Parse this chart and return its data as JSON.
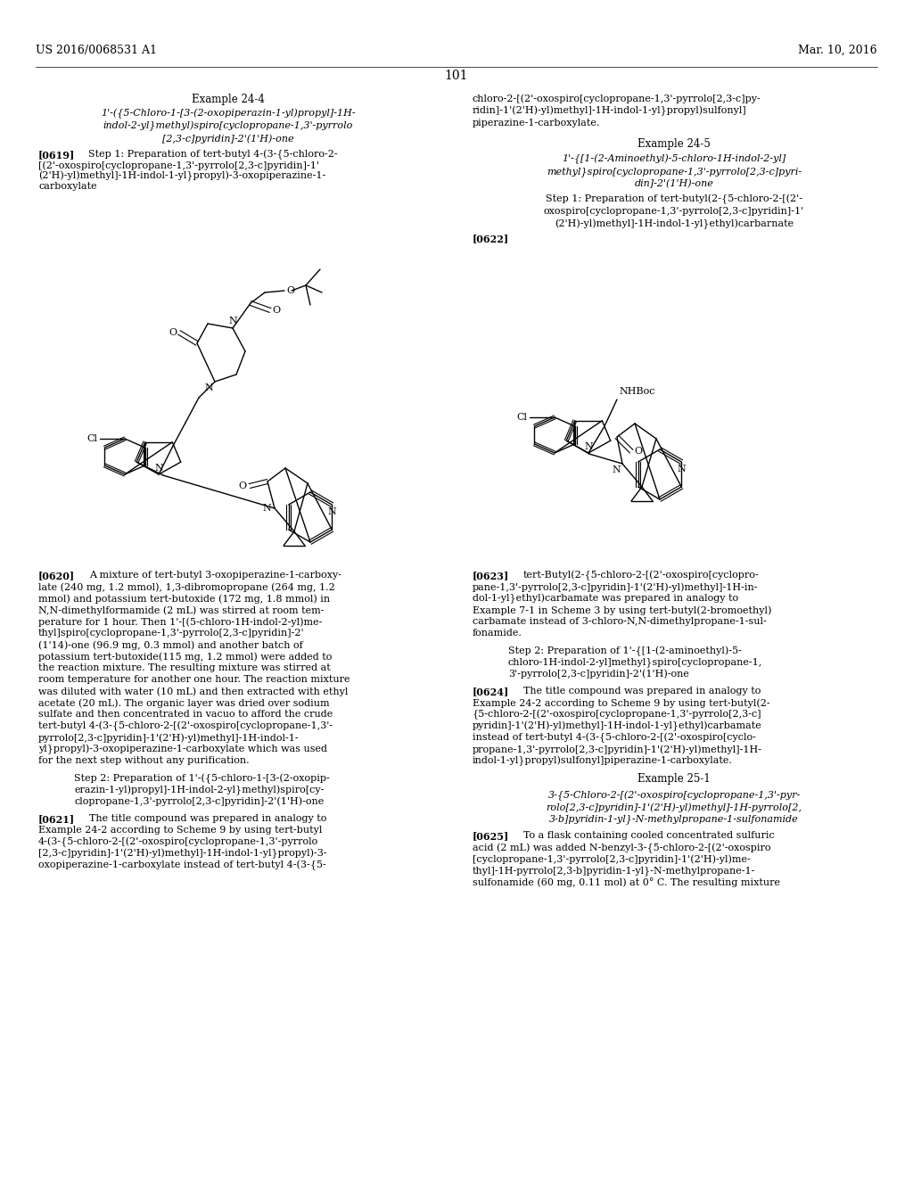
{
  "page_width": 10.24,
  "page_height": 13.2,
  "bg_color": "#ffffff",
  "header_left": "US 2016/0068531 A1",
  "header_right": "Mar. 10, 2016",
  "page_number": "101"
}
